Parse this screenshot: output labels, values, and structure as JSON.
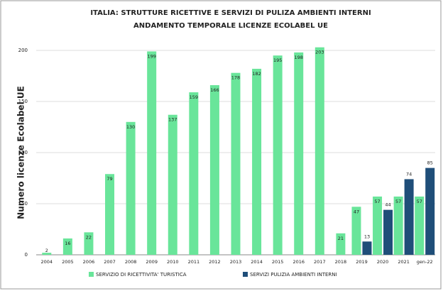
{
  "chart_data": {
    "type": "bar",
    "title": "ITALIA:  STRUTTURE RICETTIVE E SERVIZI DI PULIZA AMBIENTI INTERNI",
    "subtitle": "ANDAMENTO TEMPORALE LICENZE ECOLABEL UE",
    "y_label": "Numero licenze Ecolabel UE",
    "categories": [
      "2004",
      "2005",
      "2006",
      "2007",
      "2008",
      "2009",
      "2010",
      "2011",
      "2012",
      "2013",
      "2014",
      "2015",
      "2016",
      "2017",
      "2018",
      "2019",
      "2020",
      "2021",
      "gen-22"
    ],
    "series": [
      {
        "name": "SERVIZIO  DI RICETTIVITA' TURISTICA",
        "color": "#69e59a",
        "values": [
          2,
          16,
          22,
          79,
          130,
          199,
          137,
          159,
          166,
          178,
          182,
          195,
          198,
          203,
          21,
          47,
          57,
          57,
          57
        ]
      },
      {
        "name": "SERVIZI PULIZIA AMBIENTI INTERNI",
        "color": "#1f4e79",
        "values": [
          null,
          null,
          null,
          null,
          null,
          null,
          null,
          null,
          null,
          null,
          null,
          null,
          null,
          null,
          null,
          13,
          44,
          74,
          85
        ]
      }
    ],
    "ylim": [
      0,
      205
    ],
    "yticks": [
      0,
      50,
      100,
      150,
      200
    ],
    "grid": true,
    "legend": "bottom"
  }
}
